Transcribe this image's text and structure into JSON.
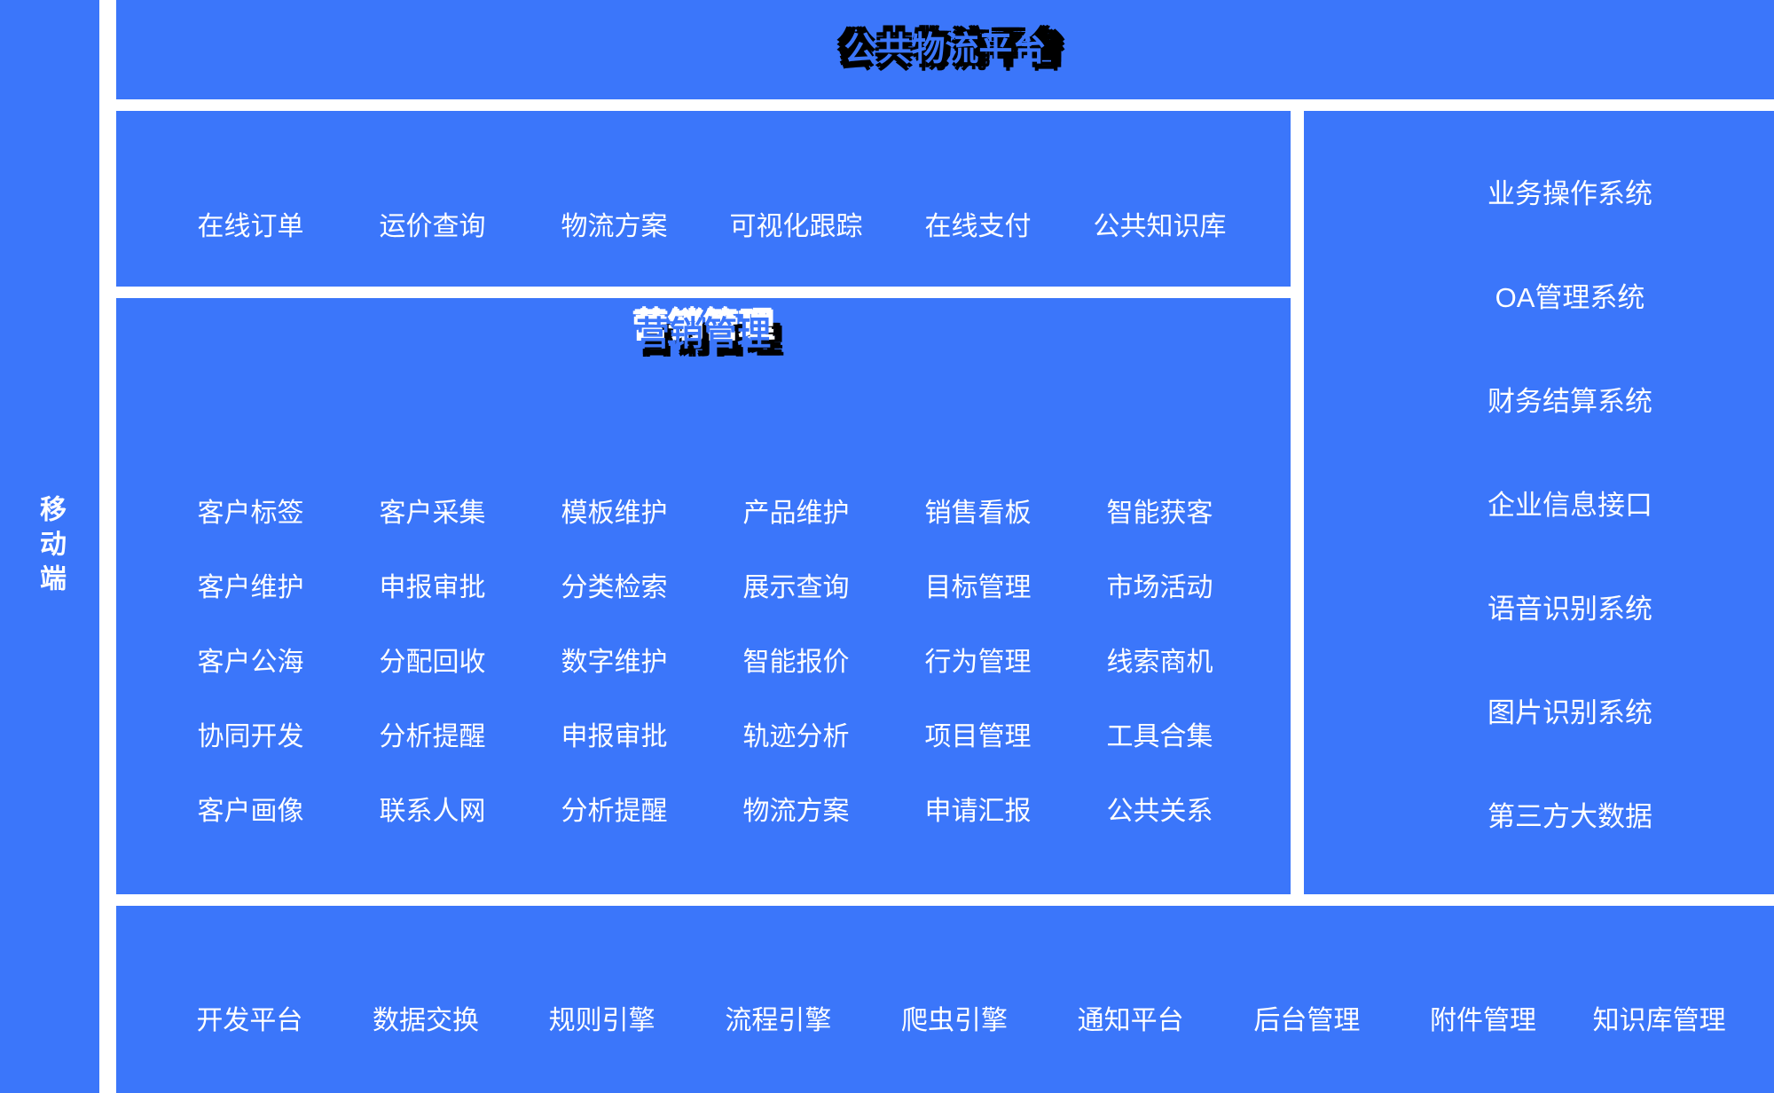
{
  "colors": {
    "panel_blue": "#3b76fa",
    "text_white": "#ffffff",
    "title_shadow_black": "#000000",
    "title_shadow_white": "#ffffff",
    "page_background": "#ffffff"
  },
  "sidebar": {
    "label": "移动端"
  },
  "top_banner": {
    "title": "公共物流平台"
  },
  "services": {
    "items": [
      "在线订单",
      "运价查询",
      "物流方案",
      "可视化跟踪",
      "在线支付",
      "公共知识库"
    ]
  },
  "marketing": {
    "title": "营销管理",
    "items": [
      "客户标签",
      "客户采集",
      "模板维护",
      "产品维护",
      "销售看板",
      "智能获客",
      "客户维护",
      "申报审批",
      "分类检索",
      "展示查询",
      "目标管理",
      "市场活动",
      "客户公海",
      "分配回收",
      "数字维护",
      "智能报价",
      "行为管理",
      "线索商机",
      "协同开发",
      "分析提醒",
      "申报审批",
      "轨迹分析",
      "项目管理",
      "工具合集",
      "客户画像",
      "联系人网",
      "分析提醒",
      "物流方案",
      "申请汇报",
      "公共关系"
    ]
  },
  "systems": {
    "items": [
      "业务操作系统",
      "OA管理系统",
      "财务结算系统",
      "企业信息接口",
      "语音识别系统",
      "图片识别系统",
      "第三方大数据"
    ]
  },
  "platform": {
    "items": [
      "开发平台",
      "数据交换",
      "规则引擎",
      "流程引擎",
      "爬虫引擎",
      "通知平台",
      "后台管理",
      "附件管理",
      "知识库管理"
    ]
  }
}
